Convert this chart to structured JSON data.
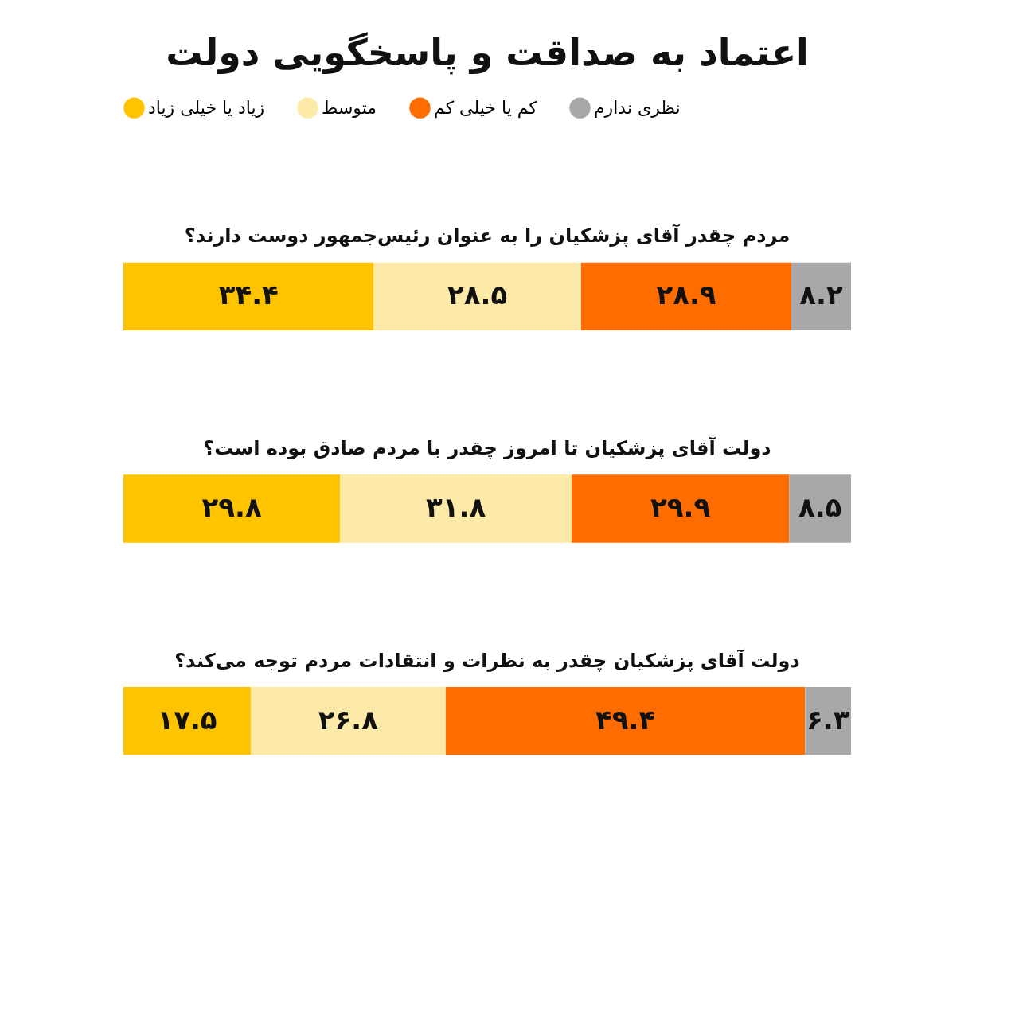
{
  "chart_data": {
    "type": "bar",
    "orientation": "horizontal",
    "stacked": true,
    "title": "اعتماد به صداقت و پاسخگویی دولت",
    "categories": [
      "مردم چقدر آقای پزشکیان را به عنوان رئیس‌جمهور دوست دارند؟",
      "دولت آقای پزشکیان تا امروز چقدر با مردم صادق بوده است؟",
      "دولت آقای پزشکیان چقدر به نظرات و انتقادات مردم توجه می‌کند؟"
    ],
    "xlim": [
      0,
      100
    ],
    "legend": "top",
    "series": [
      {
        "name": "زیاد یا خیلی زیاد",
        "color": "#ffc400",
        "values": [
          34.4,
          29.8,
          17.5
        ],
        "value_labels": [
          "۳۴.۴",
          "۲۹.۸",
          "۱۷.۵"
        ]
      },
      {
        "name": "متوسط",
        "color": "#fde9a8",
        "values": [
          28.5,
          31.8,
          26.8
        ],
        "value_labels": [
          "۲۸.۵",
          "۳۱.۸",
          "۲۶.۸"
        ]
      },
      {
        "name": "کم یا خیلی کم",
        "color": "#ff6d00",
        "values": [
          28.9,
          29.9,
          49.4
        ],
        "value_labels": [
          "۲۸.۹",
          "۲۹.۹",
          "۴۹.۴"
        ]
      },
      {
        "name": "نظری ندارم",
        "color": "#a8a8a8",
        "values": [
          8.2,
          8.5,
          6.3
        ],
        "value_labels": [
          "۸.۲",
          "۸.۵",
          "۶.۳"
        ]
      }
    ]
  }
}
